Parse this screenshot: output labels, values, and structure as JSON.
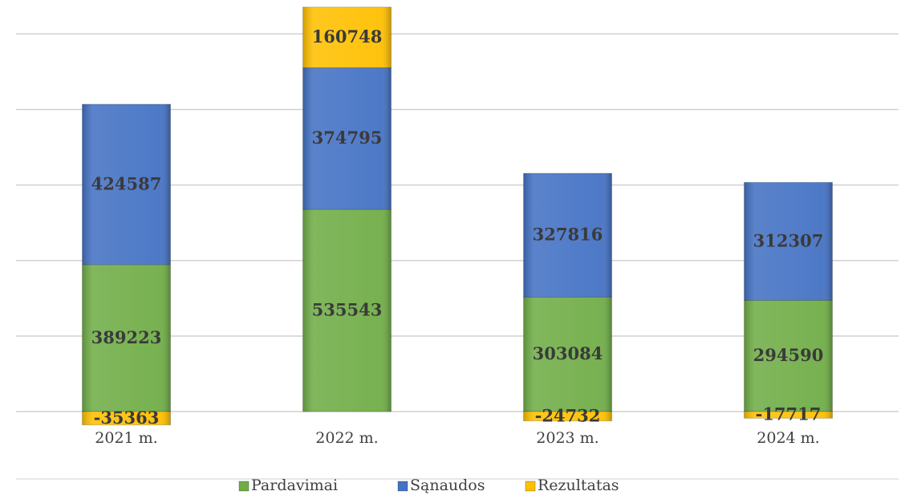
{
  "chart_data": {
    "type": "stacked_bar",
    "categories": [
      "2021 m.",
      "2022 m.",
      "2023 m.",
      "2024 m."
    ],
    "series": [
      {
        "name": "Pardavimai",
        "color": "#70ad47",
        "values": [
          389223,
          535543,
          303084,
          294590
        ]
      },
      {
        "name": "Sąnaudos",
        "color": "#4472c4",
        "values": [
          424587,
          374795,
          327816,
          312307
        ]
      },
      {
        "name": "Rezultatas",
        "color": "#ffc000",
        "values": [
          -35363,
          160748,
          -24732,
          -17717
        ]
      }
    ],
    "ylim": [
      0,
      1075000
    ],
    "yticks": [
      0,
      200000,
      400000,
      600000,
      800000,
      1000000
    ],
    "grid": true,
    "legend": "bottom"
  }
}
